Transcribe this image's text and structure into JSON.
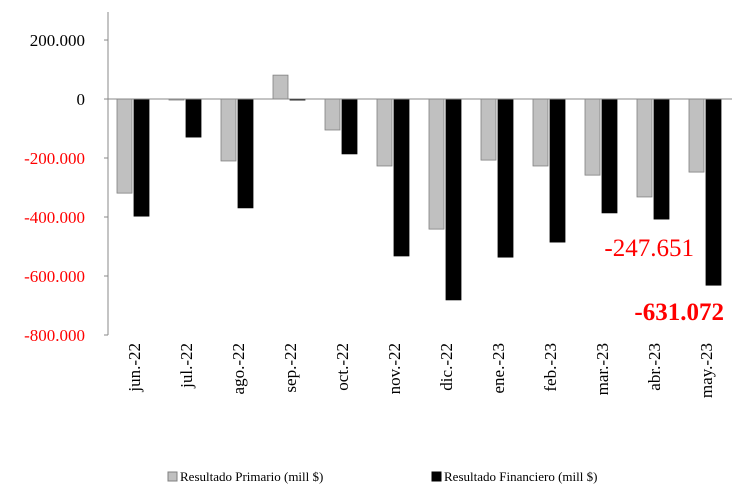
{
  "chart_data": {
    "type": "bar",
    "categories": [
      "jun.-22",
      "jul.-22",
      "ago.-22",
      "sep.-22",
      "oct.-22",
      "nov.-22",
      "dic.-22",
      "ene.-23",
      "feb.-23",
      "mar.-23",
      "abr.-23",
      "may.-23"
    ],
    "series": [
      {
        "name": "Resultado Primario  (mill $)",
        "color": "#c0c0c0",
        "values": [
          -319000,
          -3000,
          -210000,
          81000,
          -105000,
          -227000,
          -441000,
          -207000,
          -227000,
          -258000,
          -332000,
          -247651
        ],
        "value_labels": [
          null,
          null,
          null,
          null,
          null,
          null,
          null,
          null,
          null,
          null,
          null,
          "-247.651"
        ]
      },
      {
        "name": "Resultado Financiero (mill $)",
        "color": "#000000",
        "values": [
          -397000,
          -129000,
          -369000,
          -2000,
          -186000,
          -532000,
          -681000,
          -536000,
          -485000,
          -386000,
          -407000,
          -631072
        ],
        "value_labels": [
          null,
          null,
          null,
          null,
          null,
          null,
          null,
          null,
          null,
          null,
          null,
          "-631.072"
        ]
      }
    ],
    "ylim": [
      -800000,
      295000
    ],
    "yticks": [
      {
        "value": 200000,
        "label": "200.000"
      },
      0,
      {
        "value": -200000,
        "label": "-200.000"
      },
      {
        "value": -400000,
        "label": "-400.000"
      },
      {
        "value": -600000,
        "label": "-600.000"
      },
      {
        "value": -800000,
        "label": "-800.000"
      }
    ],
    "negative_tick_color": "#ff0000",
    "grid": false
  }
}
